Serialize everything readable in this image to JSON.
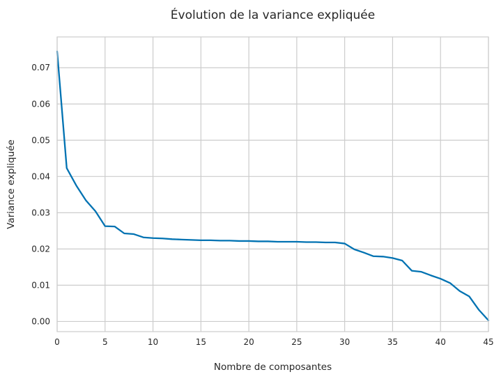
{
  "chart_data": {
    "type": "line",
    "title": "Évolution de la variance expliquée",
    "xlabel": "Nombre de composantes",
    "ylabel": "Variance expliquée",
    "xlim": [
      0,
      45
    ],
    "ylim": [
      -0.0028,
      0.0785
    ],
    "xticks": [
      "0",
      "5",
      "10",
      "15",
      "20",
      "25",
      "30",
      "35",
      "40",
      "45"
    ],
    "yticks": [
      "0.00",
      "0.01",
      "0.02",
      "0.03",
      "0.04",
      "0.05",
      "0.06",
      "0.07"
    ],
    "grid": true,
    "color": "#0072B2",
    "series": [
      {
        "x": [
          0,
          1,
          2,
          3,
          4,
          5,
          6,
          7,
          8,
          9,
          10,
          11,
          12,
          13,
          14,
          15,
          16,
          17,
          18,
          19,
          20,
          21,
          22,
          23,
          24,
          25,
          26,
          27,
          28,
          29,
          30,
          31,
          32,
          33,
          34,
          35,
          36,
          37,
          38,
          39,
          40,
          41,
          42,
          43,
          44,
          45
        ],
        "values": [
          0.0745,
          0.0423,
          0.0375,
          0.0334,
          0.0304,
          0.0263,
          0.0262,
          0.0243,
          0.0241,
          0.0232,
          0.023,
          0.0229,
          0.0227,
          0.0226,
          0.0225,
          0.0224,
          0.0224,
          0.0223,
          0.0223,
          0.0222,
          0.0222,
          0.0221,
          0.0221,
          0.022,
          0.022,
          0.022,
          0.0219,
          0.0219,
          0.0218,
          0.0218,
          0.0215,
          0.0199,
          0.019,
          0.018,
          0.0179,
          0.0175,
          0.0168,
          0.014,
          0.0137,
          0.0127,
          0.0118,
          0.0106,
          0.0084,
          0.0069,
          0.0032,
          0.0003
        ]
      }
    ]
  }
}
